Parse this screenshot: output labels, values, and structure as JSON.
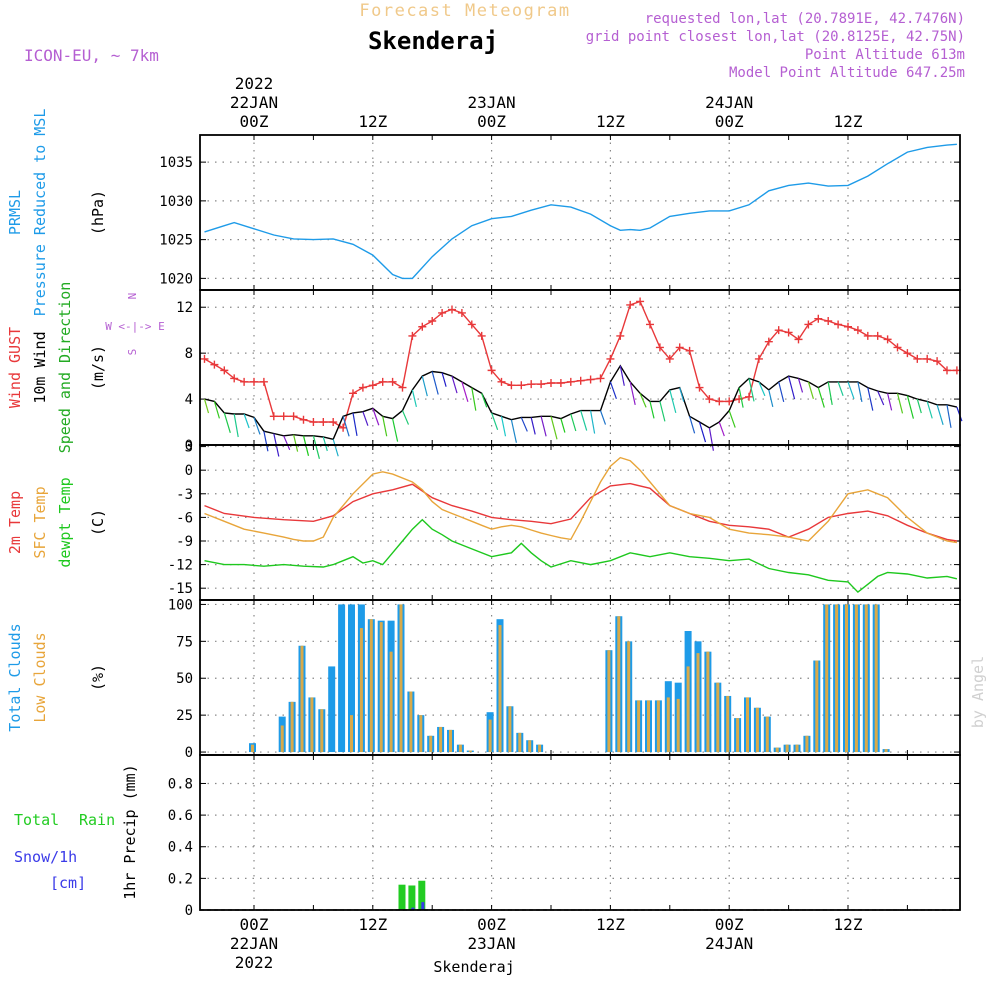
{
  "header": {
    "product": "Forecast Meteogram",
    "location": "Skenderaj",
    "model": "ICON-EU, ~ 7km",
    "requested": "requested lon,lat (20.7891E, 42.7476N)",
    "grid_point": "grid point closest lon,lat (20.8125E, 42.75N)",
    "point_altitude": "Point Altitude 613m",
    "model_altitude": "Model Point Altitude 647.25m",
    "bottom_label": "Skenderaj",
    "credit": "by Angel"
  },
  "time_axis": {
    "top_labels": [
      {
        "t": 0,
        "lines": [
          "2022",
          "22JAN",
          "00Z"
        ]
      },
      {
        "t": 12,
        "lines": [
          "12Z"
        ]
      },
      {
        "t": 24,
        "lines": [
          "23JAN",
          "00Z"
        ]
      },
      {
        "t": 36,
        "lines": [
          "12Z"
        ]
      },
      {
        "t": 48,
        "lines": [
          "24JAN",
          "00Z"
        ]
      },
      {
        "t": 60,
        "lines": [
          "12Z"
        ]
      }
    ],
    "bottom_labels": [
      {
        "t": 0,
        "lines": [
          "00Z",
          "22JAN",
          "2022"
        ]
      },
      {
        "t": 12,
        "lines": [
          "12Z"
        ]
      },
      {
        "t": 24,
        "lines": [
          "00Z",
          "23JAN"
        ]
      },
      {
        "t": 36,
        "lines": [
          "12Z"
        ]
      },
      {
        "t": 48,
        "lines": [
          "00Z",
          "24JAN"
        ]
      },
      {
        "t": 60,
        "lines": [
          "12Z"
        ]
      }
    ]
  },
  "colors": {
    "pressure": "#1e9be8",
    "gust": "#e8383a",
    "wind": "#000000",
    "direction": "#22aa22",
    "temp": "#e8383a",
    "sfc": "#e8a53a",
    "dewpt": "#1ec81e",
    "total_cloud": "#1e9be8",
    "low_cloud": "#d8aa4a",
    "rain": "#22cc22",
    "snow": "#3a3ae8",
    "header_purple": "#b55fd2",
    "title_orange": "#f0c98a"
  },
  "chart_data": [
    {
      "type": "line",
      "panel": "pressure",
      "ylabel_lines": [
        "PRMSL",
        "Pressure Reduced to MSL"
      ],
      "unit": "(hPa)",
      "ylim": [
        1018.5,
        1038.5
      ],
      "yticks": [
        1020,
        1025,
        1030,
        1035
      ],
      "grid": true,
      "series": [
        {
          "color_key": "pressure",
          "x": [
            -5,
            -3,
            -2,
            0,
            2,
            4,
            6,
            8,
            10,
            12,
            14,
            15,
            16,
            18,
            20,
            22,
            24,
            26,
            28,
            30,
            32,
            34,
            36,
            37,
            38,
            39,
            40,
            42,
            44,
            46,
            48,
            50,
            52,
            54,
            56,
            58,
            60,
            62,
            64,
            66,
            68,
            70,
            71
          ],
          "values": [
            1026,
            1026.8,
            1027.2,
            1026.4,
            1025.6,
            1025.1,
            1025.0,
            1025.1,
            1024.4,
            1023.0,
            1020.5,
            1020.0,
            1020.0,
            1022.8,
            1025.1,
            1026.8,
            1027.7,
            1028.0,
            1028.8,
            1029.5,
            1029.2,
            1028.3,
            1026.8,
            1026.2,
            1026.3,
            1026.2,
            1026.5,
            1028.0,
            1028.4,
            1028.7,
            1028.7,
            1029.5,
            1031.3,
            1032.0,
            1032.3,
            1031.9,
            1032.0,
            1033.2,
            1034.8,
            1036.3,
            1036.9,
            1037.2,
            1037.3
          ]
        }
      ]
    },
    {
      "type": "line",
      "panel": "wind",
      "ylabel_lines": [
        "Wind GUST",
        "10m Wind",
        "Speed and Direction"
      ],
      "unit": "(m/s)",
      "compass": [
        "N",
        "W <-|-> E",
        "S"
      ],
      "ylim": [
        0,
        13.5
      ],
      "yticks": [
        0,
        4,
        8,
        12
      ],
      "grid": true,
      "series": [
        {
          "name": "Wind GUST",
          "color_key": "gust",
          "marker": "+",
          "x": [
            -5,
            -4,
            -3,
            -2,
            -1,
            0,
            1,
            2,
            3,
            4,
            5,
            6,
            7,
            8,
            9,
            10,
            11,
            12,
            13,
            14,
            15,
            16,
            17,
            18,
            19,
            20,
            21,
            22,
            23,
            24,
            25,
            26,
            27,
            28,
            29,
            30,
            31,
            32,
            33,
            34,
            35,
            36,
            37,
            38,
            39,
            40,
            41,
            42,
            43,
            44,
            45,
            46,
            47,
            48,
            49,
            50,
            51,
            52,
            53,
            54,
            55,
            56,
            57,
            58,
            59,
            60,
            61,
            62,
            63,
            64,
            65,
            66,
            67,
            68,
            69,
            70,
            71
          ],
          "values": [
            7.5,
            7.0,
            6.5,
            5.8,
            5.5,
            5.5,
            5.5,
            2.5,
            2.5,
            2.5,
            2.2,
            2.0,
            2.0,
            2.0,
            1.5,
            4.5,
            5.0,
            5.2,
            5.5,
            5.5,
            5.0,
            9.5,
            10.3,
            10.8,
            11.5,
            11.8,
            11.5,
            10.5,
            9.5,
            6.5,
            5.5,
            5.2,
            5.2,
            5.3,
            5.3,
            5.4,
            5.4,
            5.5,
            5.6,
            5.7,
            5.8,
            7.5,
            9.5,
            12.2,
            12.5,
            10.5,
            8.5,
            7.5,
            8.5,
            8.2,
            5.0,
            4.0,
            3.8,
            3.8,
            4.0,
            4.2,
            7.5,
            9.0,
            10.0,
            9.8,
            9.2,
            10.5,
            11.0,
            10.8,
            10.5,
            10.3,
            10.0,
            9.5,
            9.5,
            9.2,
            8.5,
            8.0,
            7.5,
            7.5,
            7.3,
            6.5,
            6.5
          ]
        },
        {
          "name": "10m Wind",
          "color_key": "wind",
          "x": [
            -5,
            -4,
            -3,
            -2,
            -1,
            0,
            1,
            2,
            3,
            4,
            5,
            6,
            7,
            8,
            9,
            10,
            11,
            12,
            13,
            14,
            15,
            16,
            17,
            18,
            19,
            20,
            21,
            22,
            23,
            24,
            25,
            26,
            27,
            28,
            29,
            30,
            31,
            32,
            33,
            34,
            35,
            36,
            37,
            38,
            39,
            40,
            41,
            42,
            43,
            44,
            45,
            46,
            47,
            48,
            49,
            50,
            51,
            52,
            53,
            54,
            55,
            56,
            57,
            58,
            59,
            60,
            61,
            62,
            63,
            64,
            65,
            66,
            67,
            68,
            69,
            70,
            71
          ],
          "values": [
            4.0,
            3.8,
            2.8,
            2.7,
            2.7,
            2.4,
            1.2,
            1.0,
            0.8,
            0.9,
            0.8,
            0.8,
            0.7,
            0.5,
            2.5,
            2.8,
            2.9,
            3.2,
            2.5,
            2.3,
            3.0,
            4.8,
            6.0,
            6.4,
            6.3,
            6.0,
            5.5,
            5.0,
            4.5,
            2.8,
            2.5,
            2.2,
            2.4,
            2.4,
            2.5,
            2.5,
            2.3,
            2.7,
            3.0,
            3.0,
            3.0,
            5.5,
            6.9,
            5.5,
            4.5,
            3.8,
            3.8,
            4.8,
            5.0,
            2.5,
            2.0,
            1.5,
            2.0,
            3.0,
            5.0,
            5.8,
            5.5,
            4.8,
            5.5,
            6.0,
            5.8,
            5.5,
            5.0,
            5.5,
            5.5,
            5.5,
            5.5,
            5.0,
            4.7,
            4.5,
            4.5,
            4.3,
            4.0,
            3.8,
            3.5,
            3.5,
            3.3
          ]
        }
      ]
    },
    {
      "type": "line",
      "panel": "temperature",
      "ylabel_lines": [
        "2m Temp",
        "SFC Temp",
        "dewpt Temp"
      ],
      "unit": "(C)",
      "ylim": [
        -16.5,
        3.2
      ],
      "yticks": [
        -15,
        -12,
        -9,
        -6,
        -3,
        0,
        3
      ],
      "grid": true,
      "series": [
        {
          "name": "2m Temp",
          "color_key": "temp",
          "x": [
            -5,
            -3,
            0,
            3,
            6,
            8,
            10,
            12,
            14,
            16,
            18,
            20,
            22,
            24,
            26,
            28,
            30,
            32,
            34,
            36,
            38,
            40,
            42,
            44,
            46,
            48,
            50,
            52,
            54,
            56,
            58,
            60,
            62,
            64,
            66,
            68,
            70,
            71
          ],
          "values": [
            -4.5,
            -5.5,
            -6.0,
            -6.3,
            -6.5,
            -5.8,
            -4.0,
            -3.0,
            -2.5,
            -1.8,
            -3.5,
            -4.5,
            -5.2,
            -6.0,
            -6.3,
            -6.5,
            -6.8,
            -6.2,
            -3.5,
            -2.0,
            -1.7,
            -2.3,
            -4.5,
            -5.5,
            -6.5,
            -7.0,
            -7.2,
            -7.5,
            -8.5,
            -7.5,
            -6.0,
            -5.5,
            -5.2,
            -5.8,
            -7.0,
            -8.0,
            -8.8,
            -9.0
          ]
        },
        {
          "name": "SFC Temp",
          "color_key": "sfc",
          "x": [
            -5,
            -3,
            -1,
            1,
            3,
            4,
            5,
            6,
            7,
            8,
            10,
            12,
            13,
            14,
            16,
            17,
            18,
            19,
            20,
            21,
            22,
            23,
            24,
            25,
            26,
            27,
            28,
            29,
            30,
            31,
            32,
            33,
            34,
            35,
            36,
            37,
            38,
            39,
            40,
            41,
            42,
            44,
            46,
            48,
            50,
            52,
            54,
            56,
            58,
            60,
            62,
            63,
            64,
            66,
            68,
            70,
            71
          ],
          "values": [
            -5.5,
            -6.5,
            -7.5,
            -8.0,
            -8.5,
            -8.8,
            -9.0,
            -9.0,
            -8.5,
            -6.0,
            -3.0,
            -0.5,
            -0.2,
            -0.5,
            -1.5,
            -2.5,
            -4.0,
            -5.0,
            -5.5,
            -6.0,
            -6.5,
            -7.0,
            -7.5,
            -7.2,
            -7.0,
            -7.2,
            -7.6,
            -8.0,
            -8.3,
            -8.6,
            -8.8,
            -6.5,
            -4.0,
            -1.5,
            0.5,
            1.6,
            1.2,
            0.0,
            -1.5,
            -3.0,
            -4.5,
            -5.5,
            -6.0,
            -7.5,
            -8.0,
            -8.2,
            -8.5,
            -9.0,
            -6.5,
            -3.0,
            -2.5,
            -3.0,
            -3.5,
            -6.0,
            -8.0,
            -9.0,
            -9.2
          ]
        },
        {
          "name": "dewpt Temp",
          "color_key": "dewpt",
          "x": [
            -5,
            -3,
            -1,
            1,
            3,
            5,
            7,
            8,
            9,
            10,
            11,
            12,
            13,
            14,
            15,
            16,
            17,
            18,
            19,
            20,
            22,
            24,
            26,
            27,
            28,
            29,
            30,
            32,
            34,
            36,
            38,
            40,
            42,
            44,
            46,
            48,
            50,
            52,
            54,
            56,
            58,
            60,
            61,
            62,
            63,
            64,
            66,
            68,
            70,
            71
          ],
          "values": [
            -11.5,
            -12.0,
            -12.0,
            -12.2,
            -12.0,
            -12.2,
            -12.3,
            -12.0,
            -11.5,
            -11.0,
            -11.8,
            -11.5,
            -12.0,
            -10.5,
            -9.0,
            -7.5,
            -6.3,
            -7.5,
            -8.2,
            -9.0,
            -10.0,
            -11.0,
            -10.5,
            -9.3,
            -10.5,
            -11.5,
            -12.3,
            -11.5,
            -12.0,
            -11.5,
            -10.5,
            -11.0,
            -10.5,
            -11.0,
            -11.2,
            -11.5,
            -11.3,
            -12.5,
            -13.0,
            -13.3,
            -14.0,
            -14.2,
            -15.5,
            -14.5,
            -13.5,
            -13.0,
            -13.2,
            -13.7,
            -13.5,
            -13.8
          ]
        }
      ]
    },
    {
      "type": "bar",
      "panel": "clouds",
      "ylabel_lines": [
        "Total Clouds",
        "Low Clouds"
      ],
      "unit": "(%)",
      "ylim": [
        -2,
        103
      ],
      "yticks": [
        0,
        25,
        50,
        75,
        100
      ],
      "grid": true,
      "x": [
        0,
        3,
        4,
        5,
        6,
        7,
        8,
        9,
        10,
        11,
        12,
        13,
        14,
        15,
        16,
        17,
        18,
        19,
        20,
        21,
        22,
        24,
        25,
        26,
        27,
        28,
        29,
        36,
        37,
        38,
        39,
        40,
        41,
        42,
        43,
        44,
        45,
        46,
        47,
        48,
        49,
        50,
        51,
        52,
        53,
        54,
        55,
        56,
        57,
        58,
        59,
        60,
        61,
        62,
        63,
        64
      ],
      "series": [
        {
          "name": "Total Clouds",
          "color_key": "total_cloud",
          "values": [
            6,
            24,
            34,
            72,
            37,
            29,
            58,
            100,
            100,
            100,
            90,
            89,
            89,
            100,
            41,
            25,
            11,
            17,
            15,
            5,
            1,
            27,
            90,
            31,
            13,
            8,
            5,
            69,
            92,
            75,
            35,
            35,
            35,
            48,
            47,
            82,
            75,
            68,
            47,
            38,
            23,
            37,
            30,
            24,
            3,
            5,
            5,
            11,
            62,
            100,
            100,
            100,
            100,
            100,
            100,
            2
          ]
        },
        {
          "name": "Low Clouds",
          "color_key": "low_cloud",
          "values": [
            5,
            18,
            34,
            72,
            37,
            29,
            0,
            0,
            25,
            84,
            90,
            88,
            68,
            100,
            41,
            25,
            11,
            17,
            15,
            5,
            1,
            22,
            86,
            31,
            13,
            8,
            5,
            69,
            92,
            75,
            35,
            35,
            35,
            37,
            36,
            58,
            67,
            68,
            47,
            38,
            23,
            37,
            30,
            24,
            3,
            5,
            5,
            11,
            62,
            100,
            100,
            100,
            100,
            100,
            100,
            2
          ]
        }
      ]
    },
    {
      "type": "bar",
      "panel": "precip",
      "legend": {
        "total": "Total",
        "rain": "Rain",
        "snow": "Snow/1h",
        "snow_unit": "[cm]"
      },
      "ylabel_lines": [
        "1hr Precip (mm)"
      ],
      "ylim": [
        0,
        0.98
      ],
      "yticks": [
        0,
        0.2,
        0.4,
        0.6,
        0.8
      ],
      "grid": true,
      "x": [
        15,
        16,
        17
      ],
      "series": [
        {
          "name": "Rain",
          "color_key": "rain",
          "values": [
            0.16,
            0.155,
            0.185
          ]
        },
        {
          "name": "Snow/1h",
          "color_key": "snow",
          "values": [
            0.0,
            0.015,
            0.05
          ]
        }
      ]
    }
  ]
}
